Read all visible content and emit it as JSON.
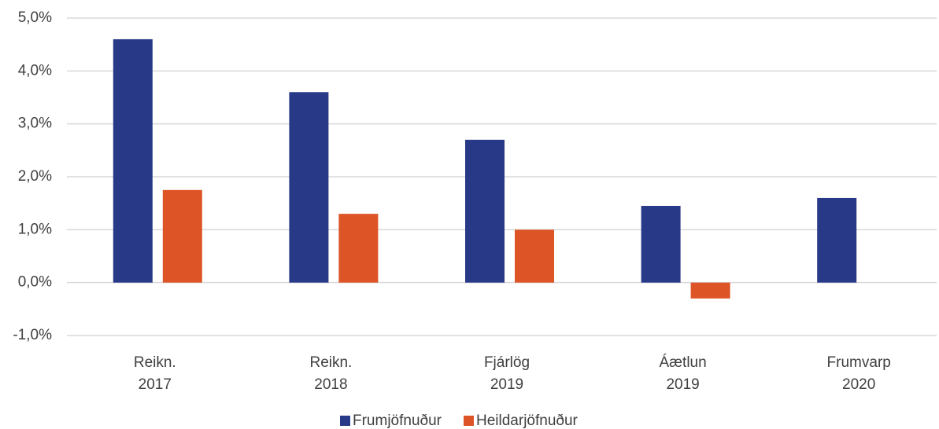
{
  "chart_data": {
    "type": "bar",
    "categories": [
      [
        "Reikn.",
        "2017"
      ],
      [
        "Reikn.",
        "2018"
      ],
      [
        "Fjárlög",
        "2019"
      ],
      [
        "Áætlun",
        "2019"
      ],
      [
        "Frumvarp",
        "2020"
      ]
    ],
    "series": [
      {
        "name": "Frumjöfnuður",
        "color": "#283a87",
        "values": [
          4.6,
          3.6,
          2.7,
          1.45,
          1.6
        ]
      },
      {
        "name": "Heildarjöfnuður",
        "color": "#dd5426",
        "values": [
          1.75,
          1.3,
          1.0,
          -0.3,
          0
        ]
      }
    ],
    "ylim": [
      -1,
      5
    ],
    "yticks": [
      {
        "value": -1,
        "label": "-1,0%"
      },
      {
        "value": 0,
        "label": "0,0%"
      },
      {
        "value": 1,
        "label": "1,0%"
      },
      {
        "value": 2,
        "label": "2,0%"
      },
      {
        "value": 3,
        "label": "3,0%"
      },
      {
        "value": 4,
        "label": "4,0%"
      },
      {
        "value": 5,
        "label": "5,0%"
      }
    ],
    "grid": true,
    "legend": "bottom"
  }
}
